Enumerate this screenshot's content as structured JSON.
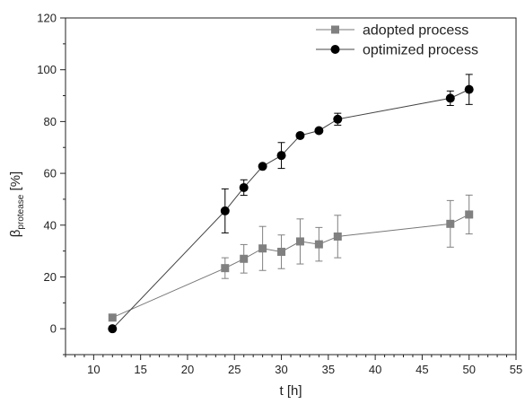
{
  "chart_data": {
    "type": "line",
    "xlabel": "t [h]",
    "ylabel_main": "β",
    "ylabel_sub": "protease",
    "ylabel_unit": " [%]",
    "xlim": [
      7,
      55
    ],
    "ylim": [
      -10,
      120
    ],
    "xticks": [
      10,
      15,
      20,
      25,
      30,
      35,
      40,
      45,
      50,
      55
    ],
    "yticks": [
      0,
      20,
      40,
      60,
      80,
      100,
      120
    ],
    "grid": false,
    "legend_position": "top-right",
    "series": [
      {
        "name": "adopted process",
        "marker": "square",
        "color": "#808080",
        "points": [
          {
            "x": 12,
            "y": 4.3,
            "err": 0
          },
          {
            "x": 24,
            "y": 23.4,
            "err": 4
          },
          {
            "x": 26,
            "y": 27,
            "err": 5.5
          },
          {
            "x": 28,
            "y": 31,
            "err": 8.5
          },
          {
            "x": 30,
            "y": 29.7,
            "err": 6.5
          },
          {
            "x": 32,
            "y": 33.7,
            "err": 8.7
          },
          {
            "x": 34,
            "y": 32.6,
            "err": 6.5
          },
          {
            "x": 36,
            "y": 35.6,
            "err": 8.2
          },
          {
            "x": 48,
            "y": 40.5,
            "err": 9
          },
          {
            "x": 50,
            "y": 44.1,
            "err": 7.5
          }
        ]
      },
      {
        "name": "optimized process",
        "marker": "circle",
        "color": "#000000",
        "points": [
          {
            "x": 12,
            "y": 0,
            "err": 0
          },
          {
            "x": 24,
            "y": 45.5,
            "err": 8.5
          },
          {
            "x": 26,
            "y": 54.5,
            "err": 3
          },
          {
            "x": 28,
            "y": 62.7,
            "err": 0
          },
          {
            "x": 30,
            "y": 66.9,
            "err": 5
          },
          {
            "x": 32,
            "y": 74.6,
            "err": 0
          },
          {
            "x": 34,
            "y": 76.5,
            "err": 0
          },
          {
            "x": 36,
            "y": 80.9,
            "err": 2.3
          },
          {
            "x": 48,
            "y": 89,
            "err": 2.8
          },
          {
            "x": 50,
            "y": 92.4,
            "err": 5.8
          }
        ]
      }
    ]
  }
}
